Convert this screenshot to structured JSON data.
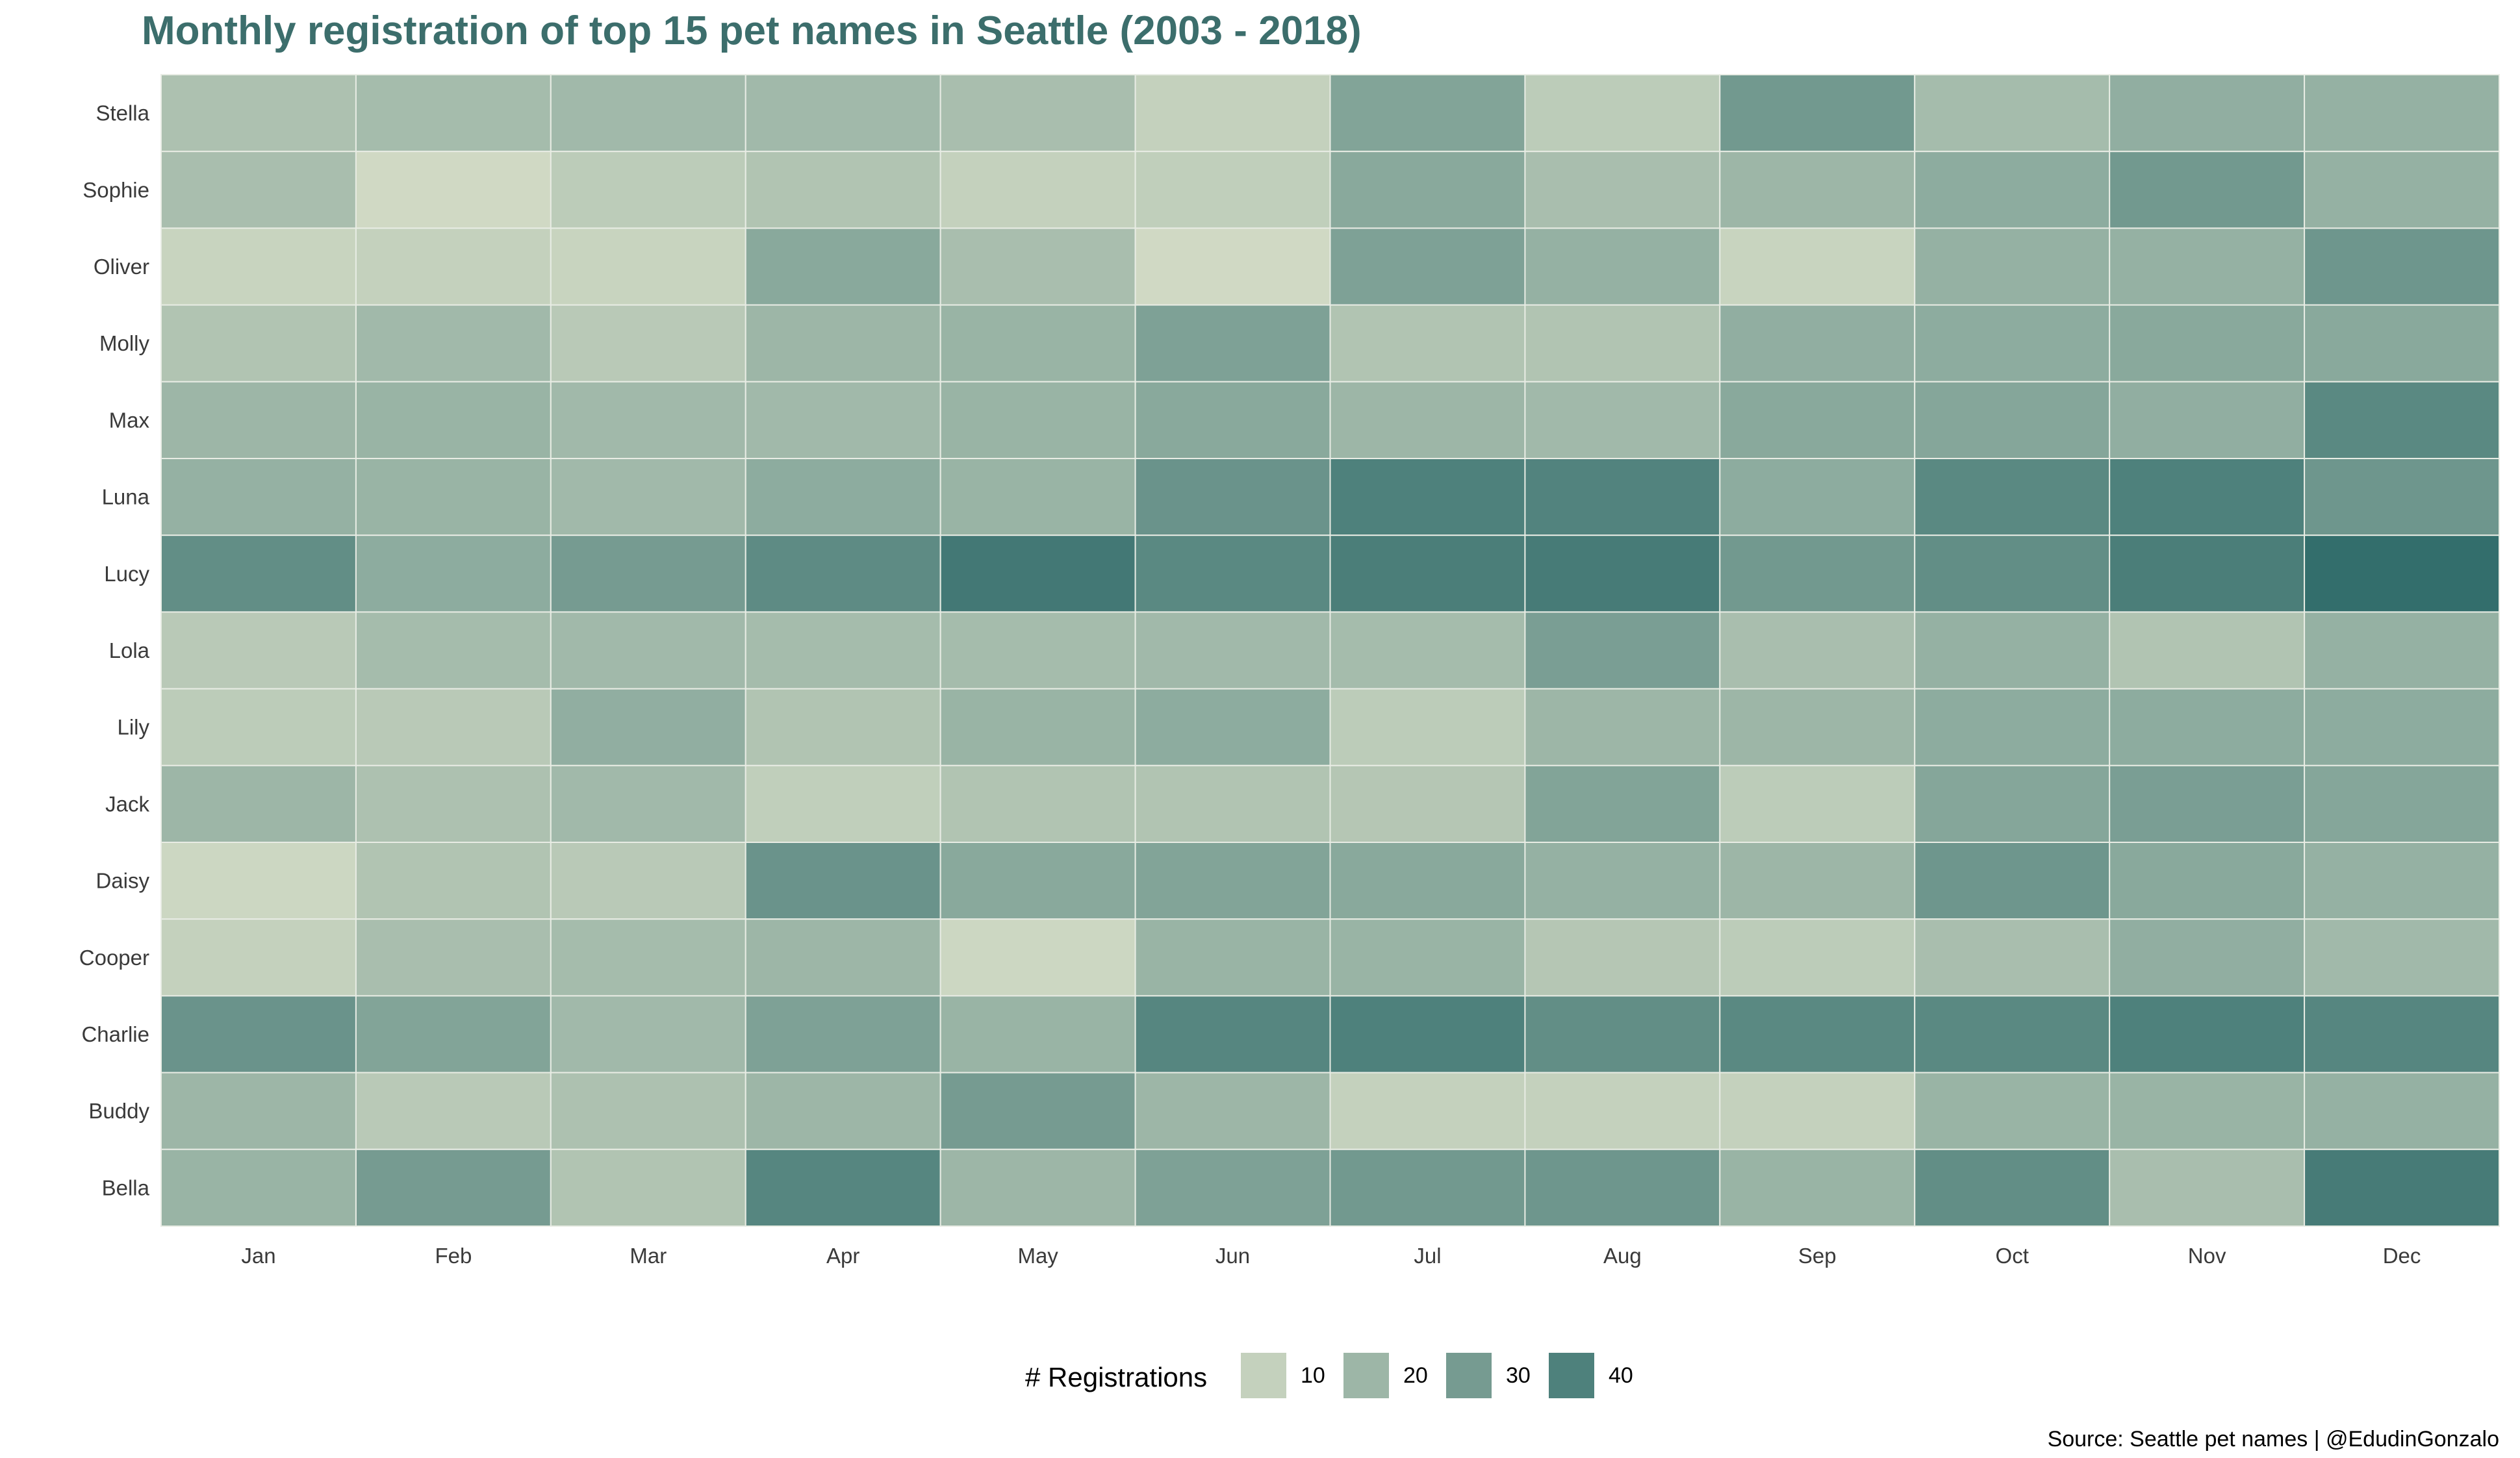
{
  "colors": {
    "title": "#3c6e6c",
    "low": "#d4dcc6",
    "high": "#2f6b6a",
    "grid_line": "#e8ece4"
  },
  "chart_data": {
    "type": "heatmap",
    "title": "Monthly registration of top 15 pet names in Seattle (2003 - 2018)",
    "x_categories": [
      "Jan",
      "Feb",
      "Mar",
      "Apr",
      "May",
      "Jun",
      "Jul",
      "Aug",
      "Sep",
      "Oct",
      "Nov",
      "Dec"
    ],
    "y_categories": [
      "Stella",
      "Sophie",
      "Oliver",
      "Molly",
      "Max",
      "Luna",
      "Lucy",
      "Lola",
      "Lily",
      "Jack",
      "Daisy",
      "Cooper",
      "Charlie",
      "Buddy",
      "Bella"
    ],
    "values": [
      [
        16,
        18,
        19,
        19,
        17,
        10,
        27,
        12,
        31,
        18,
        23,
        22
      ],
      [
        17,
        7,
        12,
        15,
        10,
        11,
        25,
        17,
        20,
        24,
        31,
        22
      ],
      [
        9,
        10,
        9,
        25,
        17,
        7,
        28,
        22,
        9,
        22,
        22,
        32
      ],
      [
        15,
        19,
        13,
        20,
        21,
        28,
        15,
        15,
        23,
        24,
        25,
        25
      ],
      [
        20,
        21,
        19,
        19,
        21,
        25,
        20,
        19,
        25,
        26,
        23,
        37
      ],
      [
        22,
        21,
        19,
        24,
        21,
        33,
        40,
        39,
        24,
        37,
        40,
        32
      ],
      [
        35,
        24,
        30,
        36,
        43,
        37,
        41,
        42,
        31,
        35,
        41,
        47
      ],
      [
        13,
        18,
        19,
        18,
        18,
        19,
        18,
        29,
        17,
        22,
        15,
        22
      ],
      [
        12,
        13,
        23,
        15,
        21,
        24,
        12,
        20,
        20,
        24,
        24,
        24
      ],
      [
        20,
        16,
        19,
        11,
        15,
        15,
        14,
        27,
        12,
        26,
        29,
        26
      ],
      [
        8,
        15,
        13,
        33,
        25,
        27,
        25,
        22,
        20,
        32,
        25,
        22
      ],
      [
        10,
        17,
        18,
        20,
        8,
        21,
        21,
        14,
        12,
        17,
        23,
        19
      ],
      [
        33,
        27,
        19,
        28,
        21,
        38,
        40,
        35,
        37,
        37,
        40,
        38
      ],
      [
        20,
        13,
        16,
        20,
        30,
        20,
        10,
        10,
        10,
        21,
        21,
        22
      ],
      [
        21,
        30,
        15,
        38,
        20,
        28,
        31,
        32,
        21,
        35,
        17,
        42
      ]
    ],
    "color_range": [
      6,
      48
    ],
    "legend": {
      "title": "# Registrations",
      "labels": [
        "10",
        "20",
        "30",
        "40"
      ],
      "values": [
        10,
        20,
        30,
        40
      ],
      "position": "bottom"
    },
    "caption": "Source: Seattle pet names | @EdudinGonzalo"
  }
}
